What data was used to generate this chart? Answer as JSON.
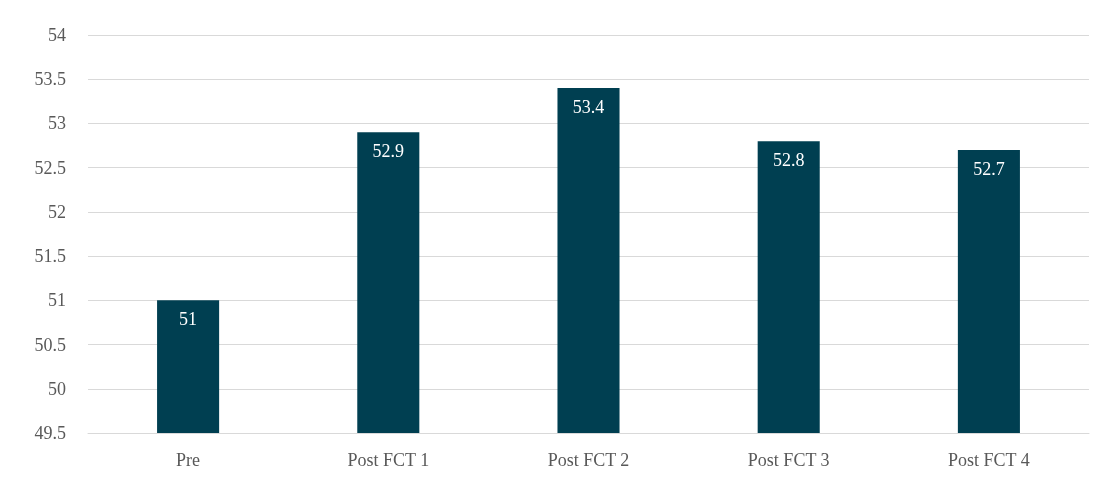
{
  "chart_data": {
    "type": "bar",
    "categories": [
      "Pre",
      "Post FCT 1",
      "Post FCT 2",
      "Post FCT 3",
      "Post FCT 4"
    ],
    "values": [
      51,
      52.9,
      53.4,
      52.8,
      52.7
    ],
    "color": "#003f51",
    "ylim": [
      49.5,
      54
    ],
    "yticks": [
      49.5,
      50,
      50.5,
      51,
      51.5,
      52,
      52.5,
      53,
      53.5,
      54
    ],
    "grid": "y",
    "data_labels": true
  }
}
